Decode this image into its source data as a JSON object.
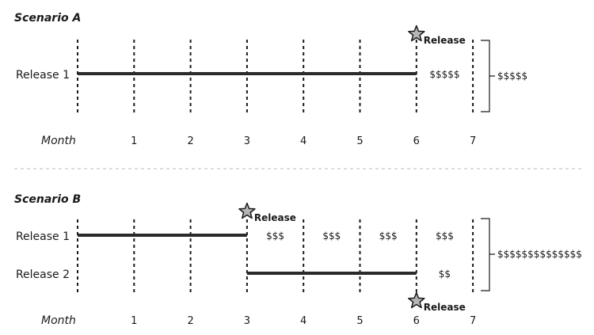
{
  "scenario_a": {
    "title": "Scenario A",
    "rows": [
      {
        "label": "Release 1",
        "start_month": 0,
        "end_month": 6
      }
    ],
    "releases": [
      {
        "label": "Release",
        "month": 6
      }
    ],
    "costs": [
      {
        "text": "$$$$$",
        "from_month": 6,
        "to_month": 7,
        "row": 0
      }
    ],
    "total": "$$$$$",
    "axis_label": "Month",
    "ticks": [
      "1",
      "2",
      "3",
      "4",
      "5",
      "6",
      "7"
    ]
  },
  "scenario_b": {
    "title": "Scenario B",
    "rows": [
      {
        "label": "Release 1",
        "start_month": 0,
        "end_month": 3
      },
      {
        "label": "Release 2",
        "start_month": 3,
        "end_month": 6
      }
    ],
    "releases": [
      {
        "label": "Release",
        "month": 3,
        "position": "above"
      },
      {
        "label": "Release",
        "month": 6,
        "position": "below"
      }
    ],
    "costs": [
      {
        "text": "$$$",
        "from_month": 3,
        "to_month": 4,
        "row": 0
      },
      {
        "text": "$$$",
        "from_month": 4,
        "to_month": 5,
        "row": 0
      },
      {
        "text": "$$$",
        "from_month": 5,
        "to_month": 6,
        "row": 0
      },
      {
        "text": "$$$",
        "from_month": 6,
        "to_month": 7,
        "row": 0
      },
      {
        "text": "$$",
        "from_month": 6,
        "to_month": 7,
        "row": 1
      }
    ],
    "total": "$$$$$$$$$$$$$$",
    "axis_label": "Month",
    "ticks": [
      "1",
      "2",
      "3",
      "4",
      "5",
      "6",
      "7"
    ]
  }
}
